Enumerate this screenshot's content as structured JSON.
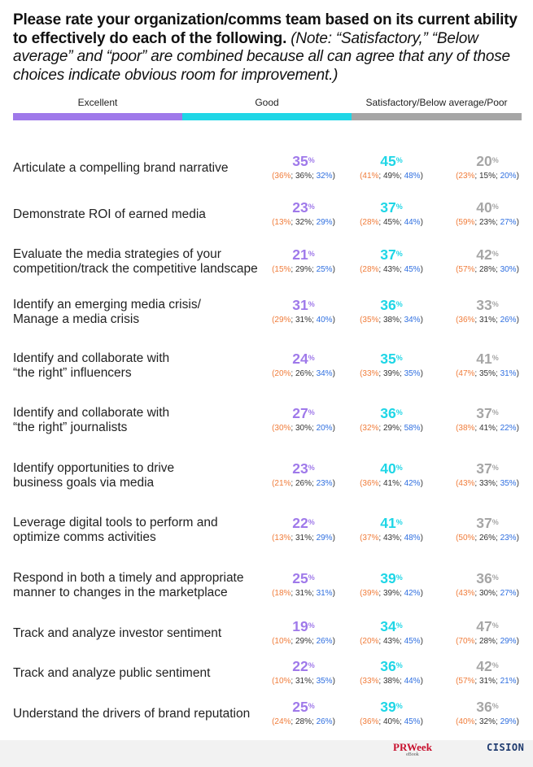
{
  "heading": {
    "bold": "Please rate your organization/comms team based on its current ability to effectively do each of the following.",
    "note": "(Note: “Satisfactory,” “Below average” and “poor” are combined because all can agree that any of those choices indicate obvious room for improvement.)"
  },
  "legend": {
    "excellent": "Excellent",
    "good": "Good",
    "satisfactory": "Satisfactory/Below average/Poor"
  },
  "colors": {
    "excellent": "#9f79ea",
    "good": "#1fd6e6",
    "satisfactory": "#a6a6a6",
    "sub_first": "#f07c3a",
    "sub_second": "#333333",
    "sub_third": "#2f6fe0"
  },
  "chart_data": {
    "type": "table",
    "columns": [
      "Excellent",
      "Good",
      "Satisfactory/Below average/Poor"
    ],
    "rows": [
      {
        "label_lines": [
          "Articulate a compelling brand narrative"
        ],
        "values": [
          35,
          45,
          20
        ],
        "subs": [
          [
            36,
            36,
            32
          ],
          [
            41,
            49,
            48
          ],
          [
            23,
            15,
            20
          ]
        ]
      },
      {
        "label_lines": [
          "Demonstrate ROI of earned media"
        ],
        "values": [
          23,
          37,
          40
        ],
        "subs": [
          [
            13,
            32,
            29
          ],
          [
            28,
            45,
            44
          ],
          [
            59,
            23,
            27
          ]
        ]
      },
      {
        "label_lines": [
          "Evaluate the media strategies of your",
          "competition/track the competitive landscape"
        ],
        "values": [
          21,
          37,
          42
        ],
        "subs": [
          [
            15,
            29,
            25
          ],
          [
            28,
            43,
            45
          ],
          [
            57,
            28,
            30
          ]
        ]
      },
      {
        "label_lines": [
          "Identify an emerging media crisis/",
          "Manage a media crisis"
        ],
        "values": [
          31,
          36,
          33
        ],
        "subs": [
          [
            29,
            31,
            40
          ],
          [
            35,
            38,
            34
          ],
          [
            36,
            31,
            26
          ]
        ]
      },
      {
        "label_lines": [
          "Identify and collaborate with",
          "“the right” influencers"
        ],
        "values": [
          24,
          35,
          41
        ],
        "subs": [
          [
            20,
            26,
            34
          ],
          [
            33,
            39,
            35
          ],
          [
            47,
            35,
            31
          ]
        ]
      },
      {
        "label_lines": [
          " Identify and collaborate with",
          "“the right” journalists"
        ],
        "values": [
          27,
          36,
          37
        ],
        "subs": [
          [
            30,
            30,
            20
          ],
          [
            32,
            29,
            58
          ],
          [
            38,
            41,
            22
          ]
        ]
      },
      {
        "label_lines": [
          "Identify opportunities to drive",
          "business goals via media"
        ],
        "values": [
          23,
          40,
          37
        ],
        "subs": [
          [
            21,
            26,
            23
          ],
          [
            36,
            41,
            42
          ],
          [
            43,
            33,
            35
          ]
        ]
      },
      {
        "label_lines": [
          "Leverage digital tools to perform and",
          "optimize comms activities"
        ],
        "values": [
          22,
          41,
          37
        ],
        "subs": [
          [
            13,
            31,
            29
          ],
          [
            37,
            43,
            48
          ],
          [
            50,
            26,
            23
          ]
        ]
      },
      {
        "label_lines": [
          "Respond in both a timely and appropriate",
          "manner to changes in the marketplace"
        ],
        "values": [
          25,
          39,
          36
        ],
        "subs": [
          [
            18,
            31,
            31
          ],
          [
            39,
            39,
            42
          ],
          [
            43,
            30,
            27
          ]
        ]
      },
      {
        "label_lines": [
          "Track and analyze investor sentiment"
        ],
        "values": [
          19,
          34,
          47
        ],
        "subs": [
          [
            10,
            29,
            26
          ],
          [
            20,
            43,
            45
          ],
          [
            70,
            28,
            29
          ]
        ]
      },
      {
        "label_lines": [
          "Track and analyze public sentiment"
        ],
        "values": [
          22,
          36,
          42
        ],
        "subs": [
          [
            10,
            31,
            35
          ],
          [
            33,
            38,
            44
          ],
          [
            57,
            31,
            21
          ]
        ]
      },
      {
        "label_lines": [
          "Understand the drivers of brand reputation"
        ],
        "values": [
          25,
          39,
          36
        ],
        "subs": [
          [
            24,
            28,
            26
          ],
          [
            36,
            40,
            45
          ],
          [
            40,
            32,
            29
          ]
        ]
      }
    ]
  },
  "footer": {
    "prweek": "PRWeek",
    "prweek_sub": "eBook",
    "cision": "CISION"
  }
}
